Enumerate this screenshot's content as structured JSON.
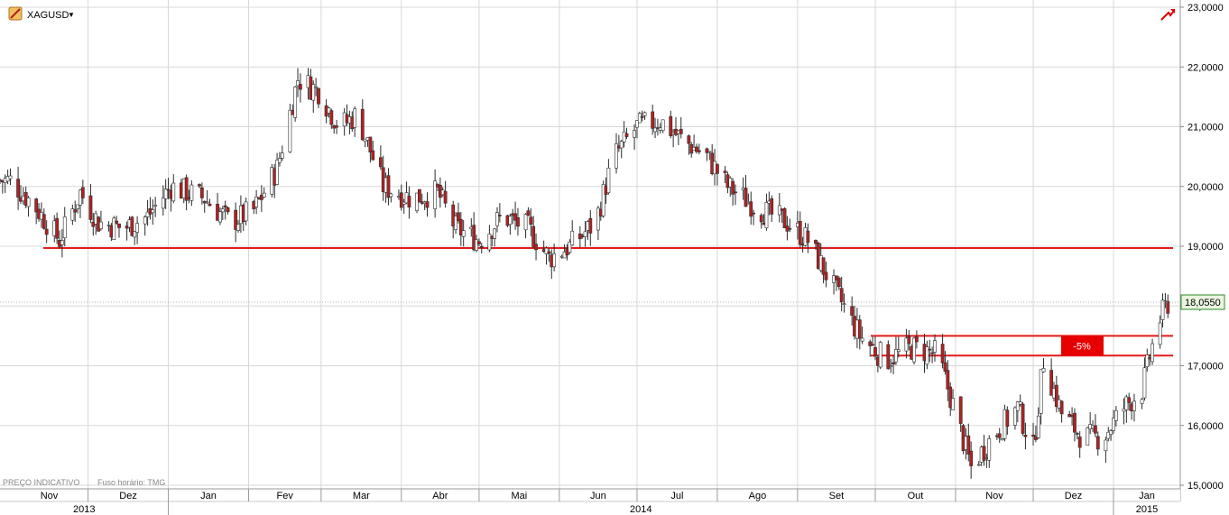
{
  "header": {
    "symbol": "XAGUSD",
    "dropdown_glyph": "▼",
    "logo_icon": "instrument-icon",
    "trend_icon": "trend-arrow-icon"
  },
  "footer_note": {
    "price_label": "PREÇO INDICATIVO",
    "timezone_label": "Fuso horário: TMG"
  },
  "current_price_label": "18,0550",
  "colors": {
    "up_candle": "#ffffff",
    "down_candle": "#b22222",
    "candle_outline": "#2b2b2b",
    "support_line": "#e31b1b",
    "annotation_box": "#e60000",
    "grid": "#d8d8d8",
    "price_tag_bg": "#eaf5e0",
    "price_tag_border": "#2e8b2e"
  },
  "chart_data": {
    "type": "candlestick",
    "title": "",
    "xlabel": "",
    "ylabel": "",
    "ylim": [
      15.0,
      23.0
    ],
    "y_ticks": [
      "23,0000",
      "22,0000",
      "21,0000",
      "20,0000",
      "19,0000",
      "18,0000",
      "17,0000",
      "16,0000",
      "15,0000"
    ],
    "y_tick_values": [
      23,
      22,
      21,
      20,
      19,
      18,
      17,
      16,
      15
    ],
    "x_months": [
      "Nov",
      "Dez",
      "Jan",
      "Fev",
      "Mar",
      "Abr",
      "Mai",
      "Jun",
      "Jul",
      "Ago",
      "Set",
      "Out",
      "Nov",
      "Dez",
      "Jan"
    ],
    "x_years": [
      "2013",
      "2014",
      "2015"
    ],
    "grid": true,
    "last_price": 18.055,
    "horizontal_lines": [
      {
        "name": "support-19",
        "value": 18.97
      },
      {
        "name": "resistance-upper",
        "value": 17.5
      },
      {
        "name": "resistance-lower",
        "value": 17.17
      }
    ],
    "annotations": [
      {
        "text": "-5%",
        "y_low": 17.17,
        "y_high": 17.5
      }
    ],
    "series": [
      {
        "name": "",
        "waypoints_close": [
          [
            "2013-11-01",
            20.1
          ],
          [
            "2013-11-10",
            19.7
          ],
          [
            "2013-11-20",
            19.1
          ],
          [
            "2013-11-28",
            19.9
          ],
          [
            "2013-12-05",
            19.4
          ],
          [
            "2013-12-15",
            19.3
          ],
          [
            "2013-12-24",
            19.5
          ],
          [
            "2014-01-02",
            20.0
          ],
          [
            "2014-01-15",
            19.8
          ],
          [
            "2014-01-25",
            19.4
          ],
          [
            "2014-02-03",
            19.6
          ],
          [
            "2014-02-12",
            20.3
          ],
          [
            "2014-02-20",
            21.8
          ],
          [
            "2014-02-28",
            21.6
          ],
          [
            "2014-03-08",
            21.0
          ],
          [
            "2014-03-15",
            21.2
          ],
          [
            "2014-03-25",
            20.0
          ],
          [
            "2014-04-05",
            19.8
          ],
          [
            "2014-04-15",
            19.9
          ],
          [
            "2014-04-22",
            19.3
          ],
          [
            "2014-05-01",
            19.1
          ],
          [
            "2014-05-10",
            19.5
          ],
          [
            "2014-05-20",
            19.3
          ],
          [
            "2014-05-28",
            18.8
          ],
          [
            "2014-06-05",
            19.0
          ],
          [
            "2014-06-15",
            19.4
          ],
          [
            "2014-06-22",
            20.5
          ],
          [
            "2014-07-01",
            21.0
          ],
          [
            "2014-07-10",
            21.1
          ],
          [
            "2014-07-18",
            20.8
          ],
          [
            "2014-07-28",
            20.5
          ],
          [
            "2014-08-05",
            20.0
          ],
          [
            "2014-08-18",
            19.6
          ],
          [
            "2014-08-28",
            19.4
          ],
          [
            "2014-09-05",
            19.1
          ],
          [
            "2014-09-15",
            18.3
          ],
          [
            "2014-09-25",
            17.5
          ],
          [
            "2014-10-05",
            17.1
          ],
          [
            "2014-10-15",
            17.3
          ],
          [
            "2014-10-25",
            17.2
          ],
          [
            "2014-11-01",
            16.2
          ],
          [
            "2014-11-07",
            15.3
          ],
          [
            "2014-11-15",
            15.8
          ],
          [
            "2014-11-25",
            16.3
          ],
          [
            "2014-12-01",
            15.6
          ],
          [
            "2014-12-05",
            17.1
          ],
          [
            "2014-12-12",
            16.2
          ],
          [
            "2014-12-20",
            15.8
          ],
          [
            "2014-12-28",
            15.8
          ],
          [
            "2015-01-05",
            16.3
          ],
          [
            "2015-01-12",
            16.6
          ],
          [
            "2015-01-18",
            17.7
          ],
          [
            "2015-01-22",
            18.05
          ]
        ]
      }
    ]
  },
  "x_axis_dates": {
    "start": "2013-10-28",
    "end": "2015-01-24",
    "month_boundaries": [
      "2013-11-01",
      "2013-12-01",
      "2014-01-01",
      "2014-02-01",
      "2014-03-01",
      "2014-04-01",
      "2014-05-01",
      "2014-06-01",
      "2014-07-01",
      "2014-08-01",
      "2014-09-01",
      "2014-10-01",
      "2014-11-01",
      "2014-12-01",
      "2015-01-01"
    ]
  }
}
